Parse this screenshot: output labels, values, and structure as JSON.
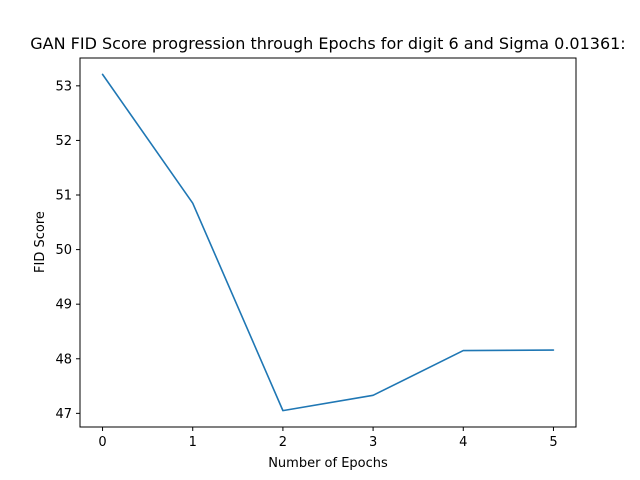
{
  "chart_data": {
    "type": "line",
    "title": "GAN FID Score progression through Epochs for digit 6 and Sigma 0.01361:",
    "xlabel": "Number of Epochs",
    "ylabel": "FID Score",
    "x": [
      0,
      1,
      2,
      3,
      4,
      5
    ],
    "series": [
      {
        "values": [
          53.21,
          50.85,
          47.05,
          47.33,
          48.15,
          48.16
        ],
        "color": "#1f77b4"
      }
    ],
    "xlim": [
      -0.25,
      5.25
    ],
    "ylim": [
      46.75,
      53.51
    ],
    "xticks": [
      0,
      1,
      2,
      3,
      4,
      5
    ],
    "yticks": [
      47,
      48,
      49,
      50,
      51,
      52,
      53
    ],
    "grid": false,
    "legend": "none"
  }
}
